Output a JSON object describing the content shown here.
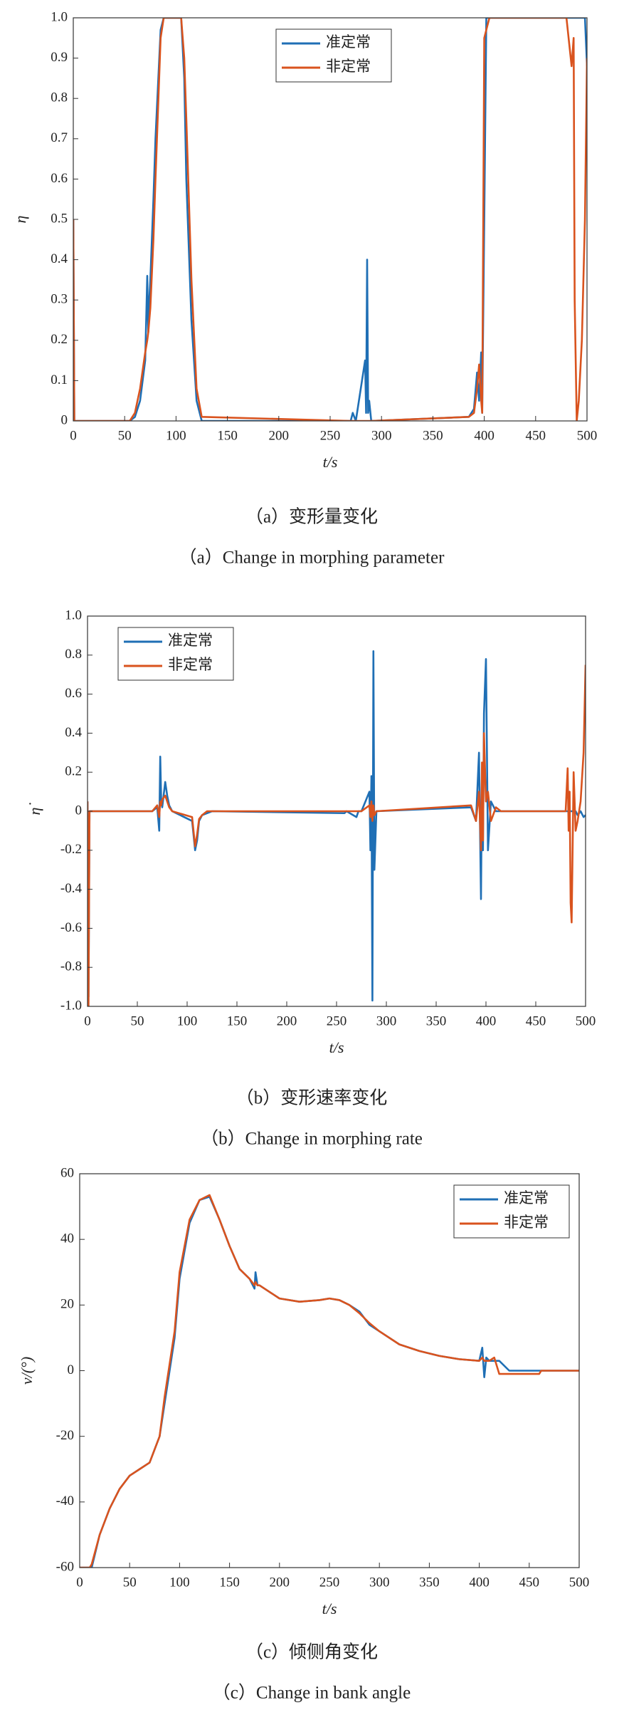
{
  "chart_data": [
    {
      "type": "line",
      "caption": "（a）变形量变化",
      "caption_en": "（a）Change in morphing parameter",
      "xlabel": "t/s",
      "ylabel": "η",
      "x": [
        0,
        1,
        2,
        55,
        60,
        65,
        70,
        72,
        73,
        74,
        75,
        78,
        80,
        85,
        88,
        105,
        108,
        110,
        115,
        120,
        125,
        270,
        272,
        275,
        284,
        285,
        286,
        287,
        288,
        290,
        385,
        390,
        393,
        395,
        397,
        398,
        400,
        402,
        405,
        480,
        485,
        487,
        488,
        490,
        492,
        495,
        498,
        500
      ],
      "series": [
        {
          "name": "准定常",
          "color": "#1f6fb5",
          "values": [
            0.5,
            0,
            0,
            0,
            0.01,
            0.05,
            0.15,
            0.36,
            0.22,
            0.3,
            0.35,
            0.55,
            0.7,
            0.97,
            1,
            1,
            0.85,
            0.6,
            0.25,
            0.05,
            0,
            0,
            0.02,
            0,
            0.15,
            0.02,
            0.4,
            0.02,
            0.05,
            0,
            0.01,
            0.03,
            0.12,
            0.05,
            0.17,
            0.02,
            0.5,
            1,
            1,
            1,
            1,
            1,
            1,
            1,
            1,
            1,
            1,
            0.88
          ]
        },
        {
          "name": "非定常",
          "color": "#d9531e",
          "values": [
            0.5,
            0,
            0,
            0,
            0.02,
            0.08,
            0.17,
            0.2,
            0.22,
            0.25,
            0.28,
            0.45,
            0.6,
            0.95,
            1,
            1,
            0.9,
            0.75,
            0.35,
            0.08,
            0.01,
            0,
            0,
            0,
            0,
            0,
            0,
            0,
            0,
            0,
            0.01,
            0.02,
            0.08,
            0.14,
            0.05,
            0.02,
            0.95,
            0.97,
            1,
            1,
            0.88,
            0.95,
            0.3,
            0,
            0.05,
            0.2,
            0.5,
            0.9
          ]
        }
      ],
      "xlim": [
        0,
        500
      ],
      "xticks": [
        0,
        50,
        100,
        150,
        200,
        250,
        300,
        350,
        400,
        450,
        500
      ],
      "ylim": [
        0,
        1
      ],
      "yticks": [
        0,
        0.1,
        0.2,
        0.3,
        0.4,
        0.5,
        0.6,
        0.7,
        0.8,
        0.9,
        {
          "value": 1,
          "label": "1.0"
        }
      ],
      "legend": "upper center"
    },
    {
      "type": "line",
      "caption": "（b）变形速率变化",
      "caption_en": "（b）Change in morphing rate",
      "xlabel": "t/s",
      "ylabel": "η̇",
      "x": [
        0,
        1,
        2,
        65,
        70,
        72,
        73,
        74,
        75,
        78,
        80,
        82,
        85,
        105,
        108,
        110,
        112,
        115,
        120,
        125,
        258,
        260,
        270,
        272,
        275,
        283,
        284,
        285,
        286,
        287,
        288,
        290,
        385,
        390,
        393,
        395,
        396,
        397,
        398,
        400,
        402,
        405,
        410,
        415,
        480,
        482,
        483,
        484,
        485,
        486,
        488,
        490,
        492,
        495,
        498,
        500
      ],
      "series": [
        {
          "name": "准定常",
          "color": "#1f6fb5",
          "values": [
            0.05,
            -0.95,
            0,
            0,
            0.02,
            -0.1,
            0.28,
            0.05,
            0.02,
            0.15,
            0.08,
            0.03,
            0,
            -0.05,
            -0.2,
            -0.15,
            -0.05,
            -0.02,
            -0.01,
            0,
            -0.01,
            0,
            -0.03,
            0,
            0,
            0.1,
            -0.2,
            0.18,
            -0.97,
            0.82,
            -0.3,
            0,
            0.02,
            -0.05,
            0.3,
            -0.45,
            0.2,
            -0.2,
            0.5,
            0.78,
            -0.2,
            0.05,
            0,
            0,
            0,
            0,
            0,
            0,
            0,
            0,
            0,
            0,
            -0.02,
            0,
            -0.03,
            -0.02
          ]
        },
        {
          "name": "非定常",
          "color": "#d9531e",
          "values": [
            0.05,
            -1,
            0,
            0,
            0.03,
            -0.03,
            0.05,
            0.03,
            0.06,
            0.08,
            0.05,
            0.02,
            0,
            -0.03,
            -0.18,
            -0.12,
            -0.04,
            -0.02,
            0,
            0,
            0,
            0,
            0,
            0,
            0,
            0.03,
            -0.03,
            0.05,
            -0.05,
            0.03,
            -0.02,
            0,
            0.03,
            -0.05,
            0.1,
            -0.2,
            0.25,
            -0.15,
            0.4,
            0.05,
            0.1,
            -0.05,
            0.02,
            0,
            0,
            0.22,
            -0.1,
            0.1,
            -0.47,
            -0.57,
            0.2,
            -0.1,
            -0.05,
            0.05,
            0.3,
            0.75
          ]
        }
      ],
      "xlim": [
        0,
        500
      ],
      "xticks": [
        0,
        50,
        100,
        150,
        200,
        250,
        300,
        350,
        400,
        450,
        500
      ],
      "ylim": [
        -1,
        1
      ],
      "yticks": [
        {
          "value": -1,
          "label": "-1.0"
        },
        -0.8,
        -0.6,
        -0.4,
        -0.2,
        0,
        0.2,
        0.4,
        0.6,
        0.8,
        {
          "value": 1,
          "label": "1.0"
        }
      ],
      "legend": "upper left"
    },
    {
      "type": "line",
      "caption": "（c）倾侧角变化",
      "caption_en": "（c）Change in bank angle",
      "xlabel": "t/s",
      "ylabel": "ν/(°)",
      "x": [
        0,
        10,
        12,
        20,
        30,
        40,
        50,
        60,
        70,
        80,
        85,
        90,
        95,
        100,
        110,
        120,
        130,
        140,
        150,
        160,
        170,
        175,
        176,
        178,
        180,
        190,
        200,
        220,
        240,
        250,
        260,
        270,
        280,
        290,
        300,
        320,
        340,
        360,
        380,
        400,
        403,
        405,
        407,
        410,
        415,
        420,
        430,
        460,
        462,
        500
      ],
      "series": [
        {
          "name": "准定常",
          "color": "#1f6fb5",
          "values": [
            -60,
            -60,
            -60,
            -50,
            -42,
            -36,
            -32,
            -30,
            -28,
            -20,
            -10,
            0,
            10,
            28,
            45,
            52,
            53,
            46,
            38,
            31,
            28,
            25,
            30,
            26,
            26,
            24,
            22,
            21,
            21.5,
            22,
            21.5,
            20,
            18,
            14,
            12,
            8,
            6,
            4.5,
            3.5,
            3,
            7,
            -2,
            4,
            3,
            3,
            3,
            0,
            0,
            0,
            0
          ]
        },
        {
          "name": "非定常",
          "color": "#d9531e",
          "values": [
            -60,
            -60,
            -59,
            -50,
            -42,
            -36,
            -32,
            -30,
            -28,
            -20,
            -8,
            2,
            12,
            30,
            46,
            52,
            53.5,
            46,
            38,
            31,
            28,
            26,
            27,
            26,
            26,
            24,
            22,
            21,
            21.5,
            22,
            21.5,
            20,
            17.5,
            14.5,
            12,
            8,
            6,
            4.5,
            3.5,
            3,
            4,
            3,
            3,
            3,
            4,
            -1,
            -1,
            -1,
            0,
            0
          ]
        }
      ],
      "xlim": [
        0,
        500
      ],
      "xticks": [
        0,
        50,
        100,
        150,
        200,
        250,
        300,
        350,
        400,
        450,
        500
      ],
      "ylim": [
        -60,
        60
      ],
      "yticks": [
        -60,
        -40,
        -20,
        0,
        20,
        40,
        60
      ],
      "legend": "upper right"
    }
  ]
}
